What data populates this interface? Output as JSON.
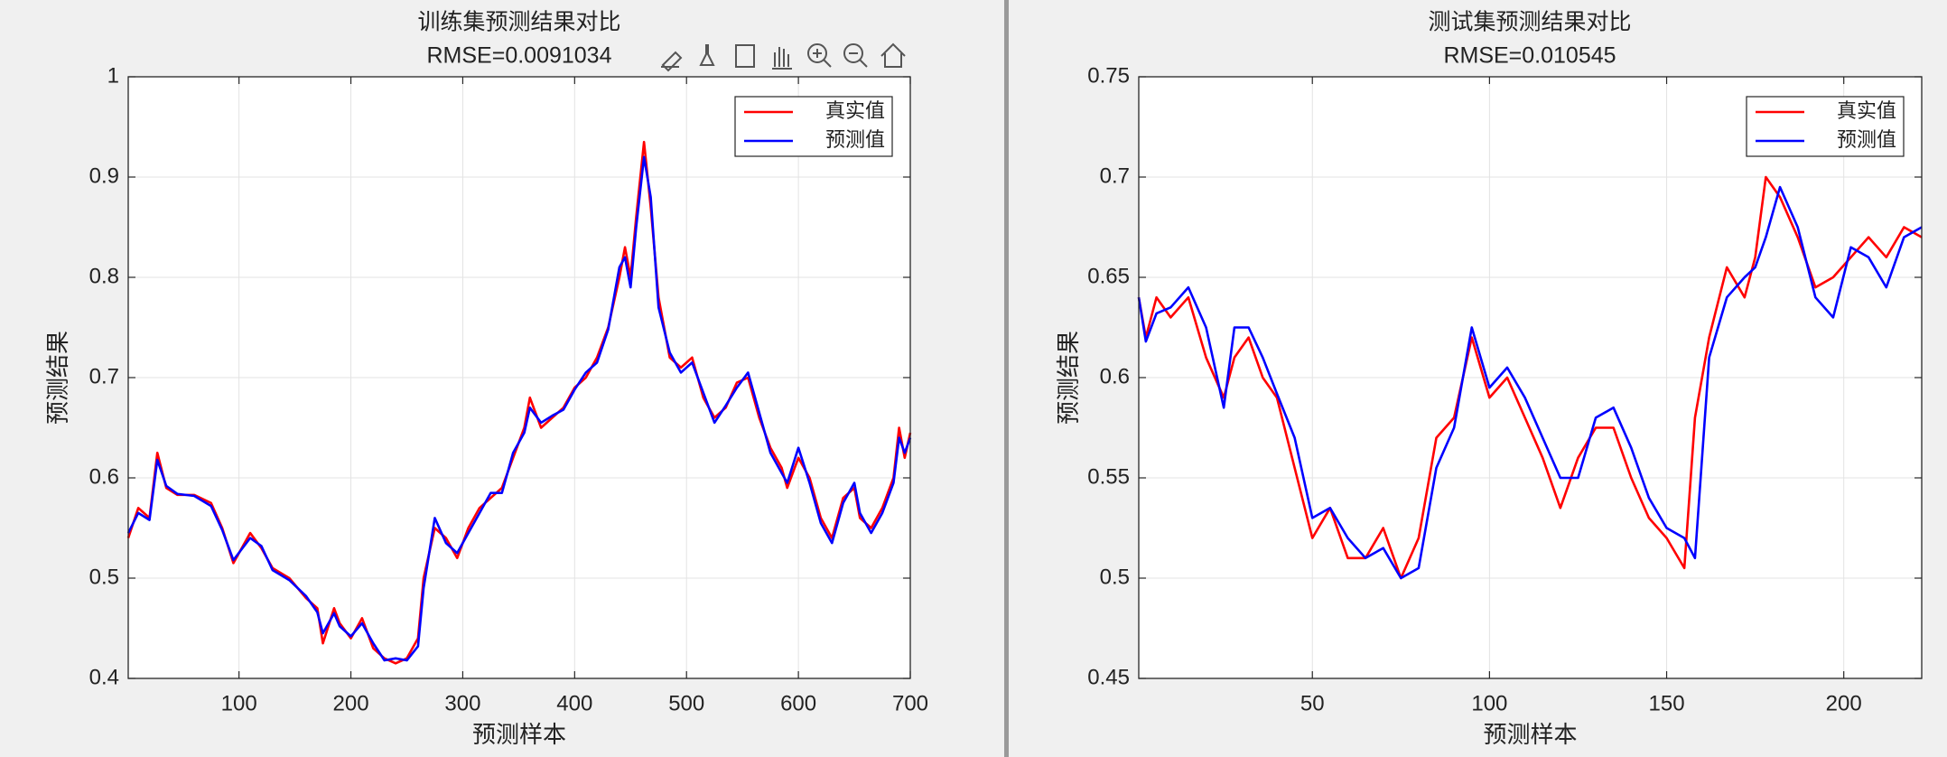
{
  "chart_data": [
    {
      "type": "line",
      "title": "训练集预测结果对比",
      "subtitle": "RMSE=0.0091034",
      "xlabel": "预测样本",
      "ylabel": "预测结果",
      "x": [
        1,
        10,
        20,
        27,
        35,
        45,
        60,
        75,
        85,
        95,
        110,
        120,
        130,
        145,
        160,
        170,
        175,
        185,
        190,
        200,
        210,
        220,
        230,
        240,
        250,
        260,
        265,
        275,
        285,
        295,
        305,
        315,
        325,
        335,
        345,
        355,
        360,
        370,
        380,
        390,
        400,
        410,
        420,
        430,
        440,
        445,
        450,
        455,
        462,
        468,
        475,
        485,
        495,
        505,
        515,
        525,
        535,
        545,
        555,
        565,
        575,
        585,
        590,
        600,
        610,
        620,
        630,
        640,
        650,
        655,
        665,
        675,
        685,
        690,
        695,
        700
      ],
      "series": [
        {
          "name": "真实值",
          "color": "#ff0000",
          "values": [
            0.54,
            0.57,
            0.56,
            0.625,
            0.59,
            0.583,
            0.583,
            0.575,
            0.55,
            0.515,
            0.545,
            0.53,
            0.51,
            0.5,
            0.48,
            0.47,
            0.435,
            0.47,
            0.455,
            0.44,
            0.46,
            0.43,
            0.42,
            0.415,
            0.42,
            0.44,
            0.5,
            0.55,
            0.54,
            0.52,
            0.55,
            0.57,
            0.58,
            0.59,
            0.62,
            0.65,
            0.68,
            0.65,
            0.66,
            0.67,
            0.69,
            0.7,
            0.72,
            0.75,
            0.8,
            0.83,
            0.8,
            0.86,
            0.935,
            0.87,
            0.78,
            0.72,
            0.71,
            0.72,
            0.68,
            0.66,
            0.67,
            0.695,
            0.7,
            0.66,
            0.63,
            0.61,
            0.59,
            0.62,
            0.6,
            0.56,
            0.54,
            0.58,
            0.59,
            0.56,
            0.55,
            0.57,
            0.6,
            0.65,
            0.62,
            0.645
          ]
        },
        {
          "name": "预测值",
          "color": "#0000ff",
          "values": [
            0.545,
            0.565,
            0.558,
            0.618,
            0.592,
            0.584,
            0.582,
            0.572,
            0.548,
            0.518,
            0.54,
            0.532,
            0.508,
            0.498,
            0.482,
            0.466,
            0.445,
            0.465,
            0.452,
            0.442,
            0.455,
            0.435,
            0.418,
            0.42,
            0.418,
            0.432,
            0.49,
            0.56,
            0.535,
            0.525,
            0.545,
            0.565,
            0.585,
            0.585,
            0.625,
            0.645,
            0.67,
            0.655,
            0.662,
            0.668,
            0.688,
            0.705,
            0.715,
            0.748,
            0.81,
            0.82,
            0.79,
            0.85,
            0.92,
            0.88,
            0.77,
            0.725,
            0.705,
            0.715,
            0.685,
            0.655,
            0.672,
            0.69,
            0.705,
            0.665,
            0.625,
            0.605,
            0.595,
            0.63,
            0.595,
            0.555,
            0.535,
            0.575,
            0.595,
            0.565,
            0.545,
            0.565,
            0.595,
            0.64,
            0.625,
            0.64
          ]
        }
      ],
      "xlim": [
        1,
        700
      ],
      "ylim": [
        0.4,
        1
      ],
      "xticks": [
        100,
        200,
        300,
        400,
        500,
        600,
        700
      ],
      "yticks": [
        0.4,
        0.5,
        0.6,
        0.7,
        0.8,
        0.9,
        1
      ],
      "grid": true,
      "legend": "upper right"
    },
    {
      "type": "line",
      "title": "测试集预测结果对比",
      "subtitle": "RMSE=0.010545",
      "xlabel": "预测样本",
      "ylabel": "预测结果",
      "x": [
        1,
        3,
        6,
        10,
        15,
        20,
        25,
        28,
        32,
        36,
        40,
        45,
        50,
        55,
        60,
        65,
        70,
        75,
        80,
        85,
        90,
        95,
        100,
        105,
        110,
        115,
        120,
        125,
        130,
        135,
        140,
        145,
        150,
        155,
        158,
        162,
        167,
        172,
        175,
        178,
        182,
        187,
        192,
        197,
        202,
        207,
        212,
        217,
        222
      ],
      "series": [
        {
          "name": "真实值",
          "color": "#ff0000",
          "values": [
            0.64,
            0.62,
            0.64,
            0.63,
            0.64,
            0.61,
            0.59,
            0.61,
            0.62,
            0.6,
            0.59,
            0.555,
            0.52,
            0.535,
            0.51,
            0.51,
            0.525,
            0.5,
            0.52,
            0.57,
            0.58,
            0.62,
            0.59,
            0.6,
            0.58,
            0.56,
            0.535,
            0.56,
            0.575,
            0.575,
            0.55,
            0.53,
            0.52,
            0.505,
            0.58,
            0.62,
            0.655,
            0.64,
            0.66,
            0.7,
            0.69,
            0.67,
            0.645,
            0.65,
            0.66,
            0.67,
            0.66,
            0.675,
            0.67
          ]
        },
        {
          "name": "预测值",
          "color": "#0000ff",
          "values": [
            0.64,
            0.618,
            0.632,
            0.635,
            0.645,
            0.625,
            0.585,
            0.625,
            0.625,
            0.61,
            0.592,
            0.57,
            0.53,
            0.535,
            0.52,
            0.51,
            0.515,
            0.5,
            0.505,
            0.555,
            0.575,
            0.625,
            0.595,
            0.605,
            0.59,
            0.57,
            0.55,
            0.55,
            0.58,
            0.585,
            0.565,
            0.54,
            0.525,
            0.52,
            0.51,
            0.61,
            0.64,
            0.65,
            0.655,
            0.67,
            0.695,
            0.675,
            0.64,
            0.63,
            0.665,
            0.66,
            0.645,
            0.67,
            0.675
          ]
        }
      ],
      "xlim": [
        1,
        222
      ],
      "ylim": [
        0.45,
        0.75
      ],
      "xticks": [
        50,
        100,
        150,
        200
      ],
      "yticks": [
        0.45,
        0.5,
        0.55,
        0.6,
        0.65,
        0.7,
        0.75
      ],
      "grid": true,
      "legend": "upper right"
    }
  ]
}
